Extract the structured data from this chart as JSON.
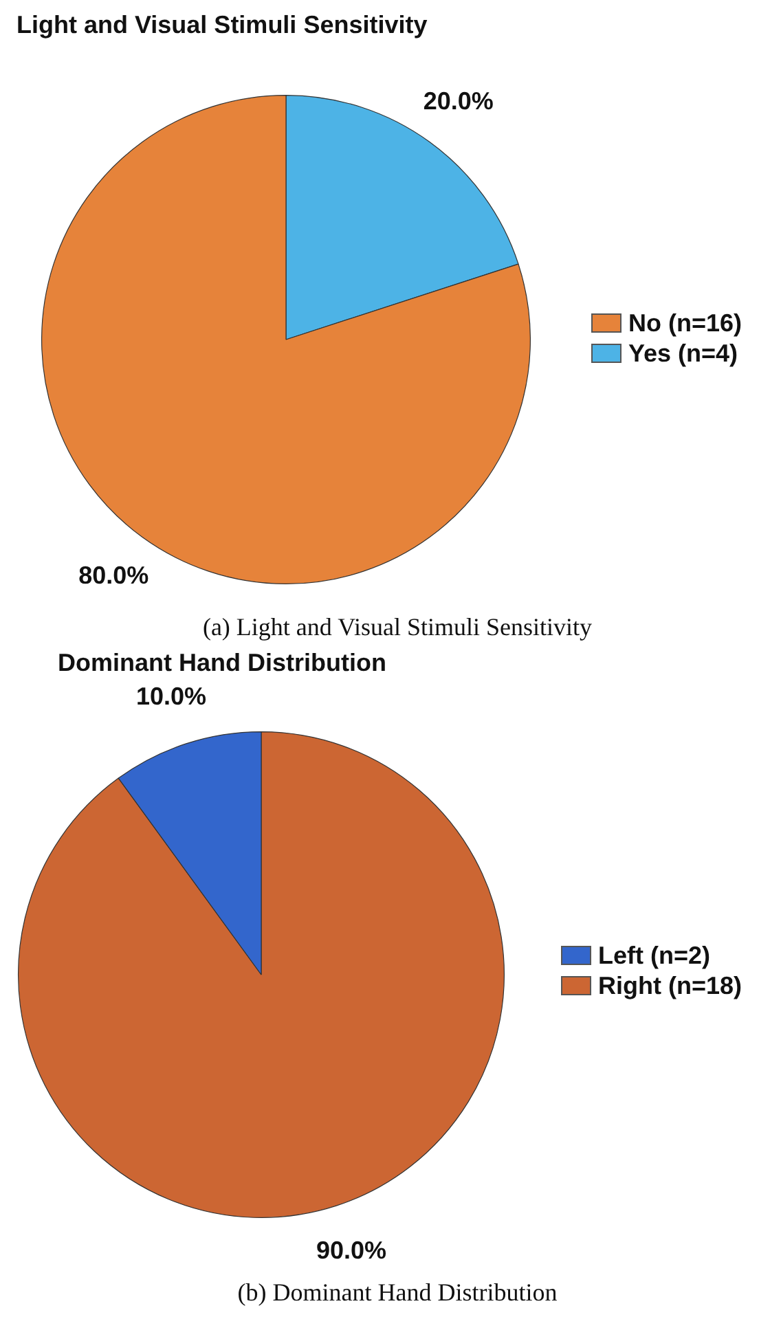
{
  "chart_data": [
    {
      "type": "pie",
      "title": "Light and Visual Stimuli Sensitivity",
      "categories": [
        "No (n=16)",
        "Yes (n=4)"
      ],
      "values": [
        80,
        20
      ],
      "colors": [
        "#e6833a",
        "#4db3e6"
      ],
      "value_labels": [
        "80.0%",
        "20.0%"
      ],
      "legend": "right",
      "annotations": [
        "(a) Light and Visual Stimuli Sensitivity"
      ]
    },
    {
      "type": "pie",
      "title": "Dominant Hand Distribution",
      "categories": [
        "Left (n=2)",
        "Right (n=18)"
      ],
      "values": [
        10,
        90
      ],
      "colors": [
        "#3366cc",
        "#cc6633"
      ],
      "value_labels": [
        "10.0%",
        "90.0%"
      ],
      "legend": "right",
      "annotations": [
        "(b) Dominant Hand Distribution"
      ]
    }
  ]
}
